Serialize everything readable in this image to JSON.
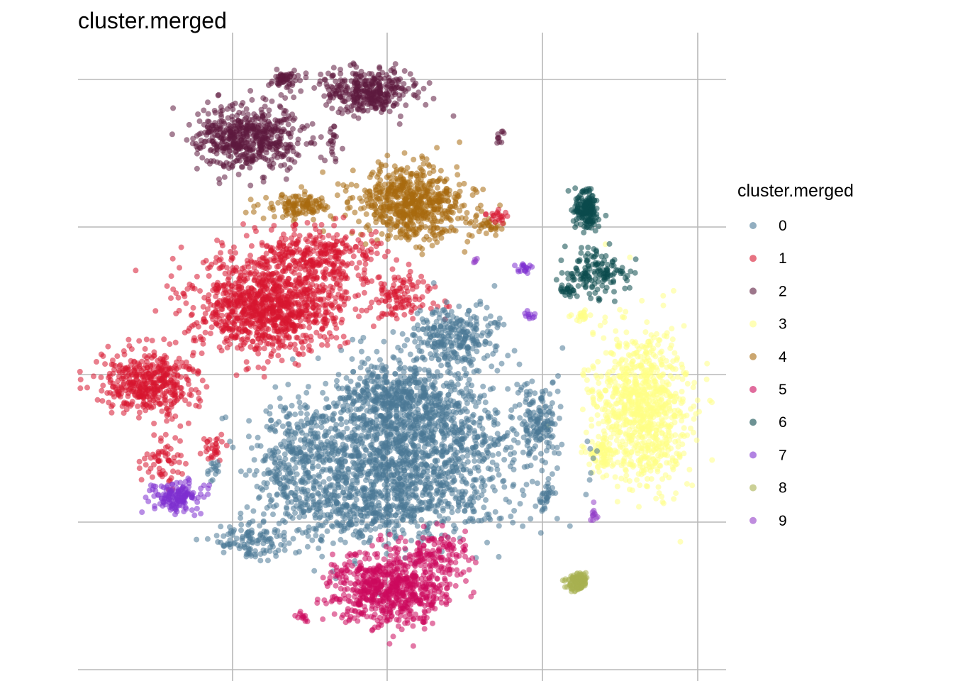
{
  "chart_data": {
    "type": "scatter",
    "title": "cluster.merged",
    "xlabel": "",
    "ylabel": "",
    "grid": true,
    "legend": {
      "title": "cluster.merged",
      "placement": "right",
      "entries": [
        "0",
        "1",
        "2",
        "3",
        "4",
        "5",
        "6",
        "7",
        "8",
        "9"
      ]
    },
    "series": [
      {
        "name": "0",
        "color": "#4A7896"
      },
      {
        "name": "1",
        "color": "#D7152F"
      },
      {
        "name": "2",
        "color": "#5C1A3E"
      },
      {
        "name": "3",
        "color": "#FFFF85"
      },
      {
        "name": "4",
        "color": "#A86A0F"
      },
      {
        "name": "5",
        "color": "#CC0A5C"
      },
      {
        "name": "6",
        "color": "#0B4A4D"
      },
      {
        "name": "7",
        "color": "#7E30CF"
      },
      {
        "name": "8",
        "color": "#A8B050"
      },
      {
        "name": "9",
        "color": "#9440C8"
      }
    ]
  }
}
